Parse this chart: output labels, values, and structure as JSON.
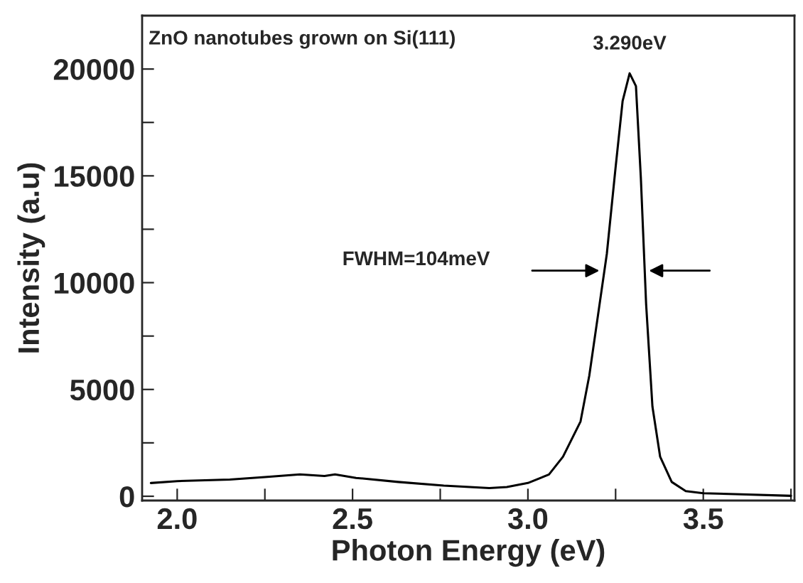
{
  "chart_data": {
    "type": "line",
    "xlabel": "Photon Energy (eV)",
    "ylabel": "Intensity (a.u)",
    "annotations": [
      "ZnO nanotubes grown on Si(111)",
      {
        "text": "3.290eV",
        "x": 3.29,
        "y": 19800
      },
      "FWHM=104meV"
    ],
    "x": [
      1.925,
      2.0,
      2.15,
      2.25,
      2.35,
      2.42,
      2.45,
      2.51,
      2.63,
      2.76,
      2.89,
      2.94,
      3.0,
      3.06,
      3.1,
      3.15,
      3.175,
      3.2,
      3.225,
      3.25,
      3.27,
      3.29,
      3.308,
      3.322,
      3.337,
      3.355,
      3.377,
      3.41,
      3.45,
      3.5,
      3.59,
      3.75
    ],
    "series": [
      {
        "color": "#000000",
        "values": [
          620,
          710,
          780,
          900,
          1020,
          950,
          1020,
          860,
          670,
          500,
          380,
          430,
          620,
          1020,
          1850,
          3500,
          5650,
          8500,
          11350,
          15400,
          18500,
          19800,
          19200,
          14900,
          9000,
          4200,
          1850,
          670,
          240,
          140,
          100,
          20
        ]
      }
    ],
    "xlim": [
      1.9,
      3.76
    ],
    "ylim": [
      -200,
      22500
    ],
    "xticks": [
      {
        "value": 2.0,
        "label": "2.0"
      },
      {
        "value": 2.25,
        "label": null
      },
      2.5,
      {
        "value": 2.75,
        "label": null
      },
      {
        "value": 3.0,
        "label": "3.0"
      },
      {
        "value": 3.25,
        "label": null
      },
      3.5,
      {
        "value": 3.75,
        "label": null
      }
    ],
    "yticks": [
      0,
      {
        "value": 2500,
        "label": null
      },
      5000,
      {
        "value": 7500,
        "label": null
      },
      10000,
      {
        "value": 12500,
        "label": null
      },
      15000,
      {
        "value": 17500,
        "label": null
      },
      20000
    ],
    "grid": false,
    "legend": false,
    "marker": "none",
    "line_style": "solid"
  }
}
